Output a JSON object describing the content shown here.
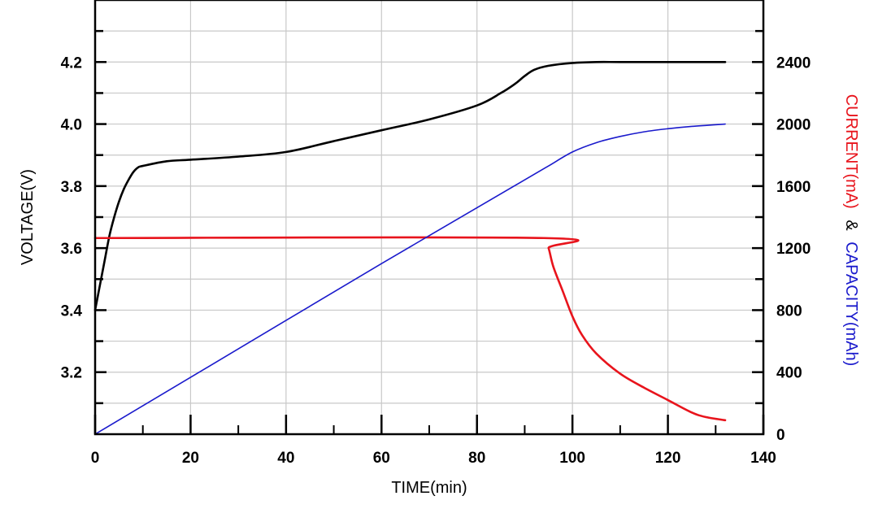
{
  "colors": {
    "voltage": "#000000",
    "current": "#e8141c",
    "capacity": "#1a1acc",
    "grid": "#c8c8c8"
  },
  "chart_data": {
    "type": "line",
    "grid": true,
    "xlabel": "TIME(min)",
    "ylabel_left": "VOLTAGE(V)",
    "ylabel_right": {
      "current_part": "CURRENT(mA)",
      "joiner": "&",
      "capacity_part": "CAPACITY(mAh)"
    },
    "xlim": [
      0,
      140
    ],
    "ylim_left": [
      3.0,
      4.4
    ],
    "ylim_right": [
      0,
      2800
    ],
    "x_ticks": [
      0,
      20,
      40,
      60,
      80,
      100,
      120,
      140
    ],
    "y_left_ticks": [
      3.2,
      3.4,
      3.6,
      3.8,
      4.0,
      4.2
    ],
    "y_left_tick_labels": [
      "3.2",
      "3.4",
      "3.6",
      "3.8",
      "4.0",
      "4.2"
    ],
    "y_right_ticks": [
      0,
      400,
      800,
      1200,
      1600,
      2000,
      2400
    ],
    "y_right_tick_labels": [
      "0",
      "400",
      "800",
      "1200",
      "1600",
      "2000",
      "2400"
    ],
    "series": [
      {
        "name": "VOLTAGE(V)",
        "axis": "left",
        "x": [
          0,
          1,
          2,
          3,
          4,
          5,
          6,
          7,
          8,
          9,
          10,
          15,
          20,
          30,
          40,
          50,
          60,
          70,
          80,
          85,
          88,
          90,
          92,
          95,
          100,
          105,
          110,
          120,
          132
        ],
        "y": [
          3.4,
          3.48,
          3.56,
          3.64,
          3.7,
          3.75,
          3.79,
          3.82,
          3.845,
          3.86,
          3.865,
          3.88,
          3.885,
          3.895,
          3.91,
          3.945,
          3.98,
          4.015,
          4.06,
          4.1,
          4.13,
          4.155,
          4.175,
          4.188,
          4.197,
          4.2,
          4.2,
          4.2,
          4.2
        ]
      },
      {
        "name": "CURRENT(mA)",
        "axis": "right",
        "x": [
          0,
          94,
          95,
          96,
          98,
          100,
          102,
          105,
          110,
          115,
          120,
          125,
          128,
          132
        ],
        "y": [
          1265,
          1265,
          1200,
          1080,
          920,
          760,
          640,
          520,
          390,
          300,
          220,
          140,
          110,
          90
        ]
      },
      {
        "name": "CAPACITY(mAh)",
        "axis": "right",
        "x": [
          0,
          30,
          60,
          90,
          95,
          100,
          105,
          110,
          115,
          120,
          125,
          132
        ],
        "y": [
          0,
          550,
          1100,
          1640,
          1730,
          1820,
          1880,
          1920,
          1950,
          1970,
          1985,
          2000
        ]
      }
    ]
  }
}
